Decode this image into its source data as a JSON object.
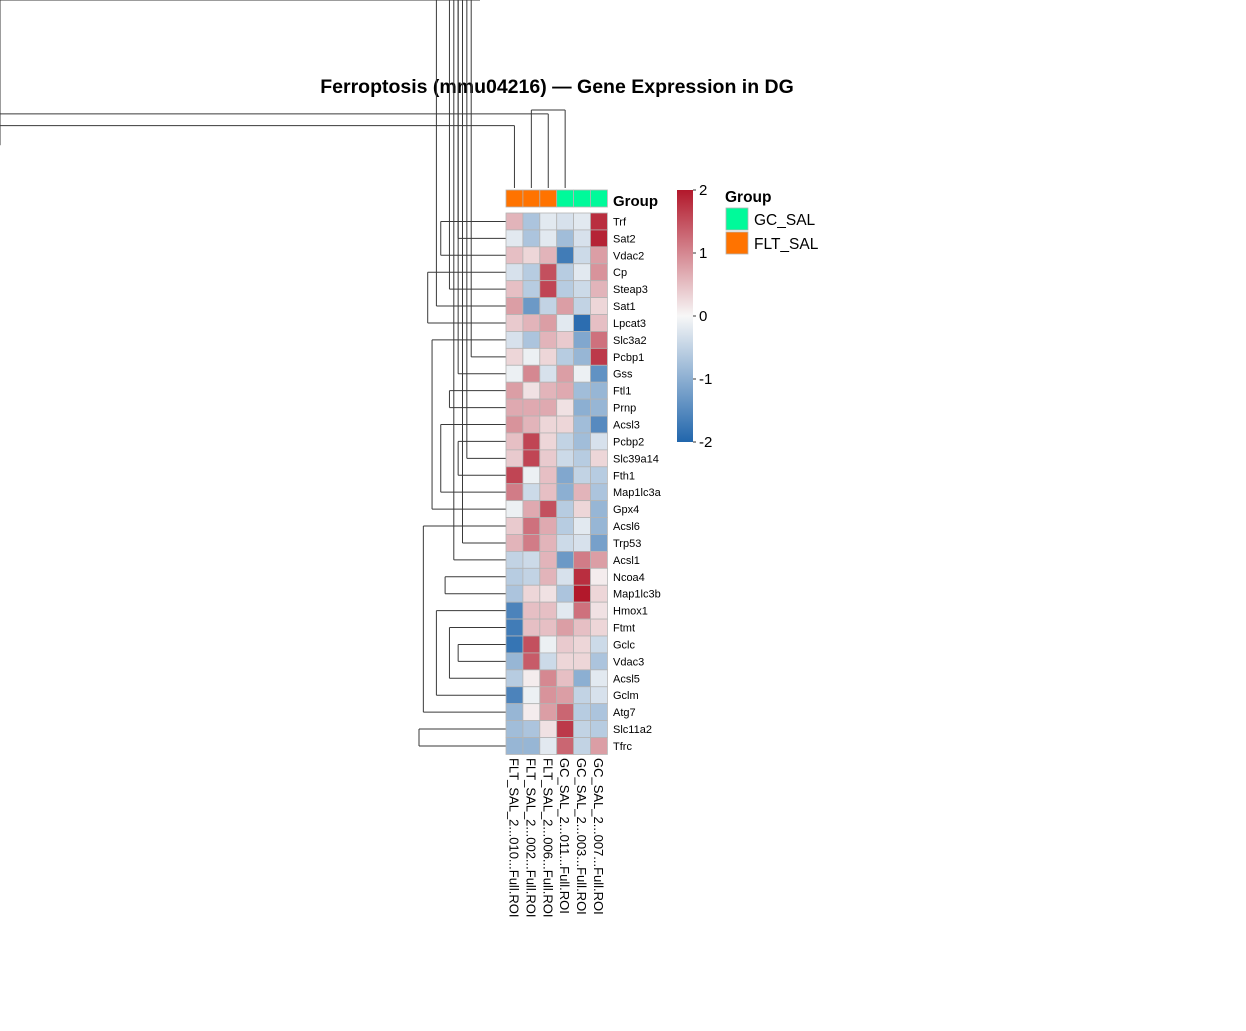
{
  "chart_data": {
    "type": "heatmap",
    "title": "Ferroptosis (mmu04216) — Gene Expression in DG",
    "columns": [
      "FLT_SAL_2...010...Full.ROI",
      "FLT_SAL_2...002...Full.ROI",
      "FLT_SAL_2...006...Full.ROI",
      "GC_SAL_2...011...Full.ROI",
      "GC_SAL_2...003...Full.ROI",
      "GC_SAL_2...007...Full.ROI"
    ],
    "column_groups": [
      "FLT_SAL",
      "FLT_SAL",
      "FLT_SAL",
      "GC_SAL",
      "GC_SAL",
      "GC_SAL"
    ],
    "annotation_label": "Group",
    "rows": [
      "Trf",
      "Sat2",
      "Vdac2",
      "Cp",
      "Steap3",
      "Sat1",
      "Lpcat3",
      "Slc3a2",
      "Pcbp1",
      "Gss",
      "Ftl1",
      "Prnp",
      "Acsl3",
      "Pcbp2",
      "Slc39a14",
      "Fth1",
      "Map1lc3a",
      "Gpx4",
      "Acsl6",
      "Trp53",
      "Acsl1",
      "Ncoa4",
      "Map1lc3b",
      "Hmox1",
      "Ftmt",
      "Gclc",
      "Vdac3",
      "Acsl5",
      "Gclm",
      "Atg7",
      "Slc11a2",
      "Tfrc"
    ],
    "values": [
      [
        0.6,
        -0.7,
        -0.2,
        -0.3,
        -0.2,
        1.8
      ],
      [
        -0.2,
        -0.7,
        -0.2,
        -0.8,
        -0.3,
        1.9
      ],
      [
        0.5,
        0.3,
        0.6,
        -1.7,
        -0.4,
        0.8
      ],
      [
        -0.3,
        -0.6,
        1.5,
        -0.6,
        -0.2,
        0.9
      ],
      [
        0.5,
        -0.6,
        1.6,
        -0.6,
        -0.4,
        0.6
      ],
      [
        0.8,
        -1.3,
        -0.5,
        0.8,
        -0.5,
        0.3
      ],
      [
        0.4,
        0.6,
        0.8,
        -0.2,
        -1.9,
        0.5
      ],
      [
        -0.3,
        -0.7,
        0.6,
        0.4,
        -1.1,
        1.2
      ],
      [
        0.3,
        -0.1,
        0.3,
        -0.6,
        -0.9,
        1.7
      ],
      [
        -0.1,
        1.0,
        -0.3,
        0.8,
        -0.1,
        -1.4
      ],
      [
        0.8,
        0.2,
        0.6,
        0.7,
        -0.8,
        -0.9
      ],
      [
        0.7,
        0.7,
        0.7,
        0.2,
        -1.0,
        -0.9
      ],
      [
        0.9,
        0.6,
        0.3,
        0.3,
        -0.8,
        -1.5
      ],
      [
        0.5,
        1.6,
        0.3,
        -0.5,
        -0.8,
        -0.3
      ],
      [
        0.4,
        1.6,
        0.4,
        -0.4,
        -0.6,
        0.3
      ],
      [
        1.6,
        -0.1,
        0.5,
        -1.1,
        -0.5,
        -0.6
      ],
      [
        1.1,
        -0.4,
        0.5,
        -1.0,
        0.6,
        -0.7
      ],
      [
        -0.1,
        0.7,
        1.5,
        -0.6,
        0.3,
        -0.9
      ],
      [
        0.4,
        1.2,
        0.7,
        -0.6,
        -0.2,
        -0.9
      ],
      [
        0.6,
        1.1,
        0.6,
        -0.4,
        -0.3,
        -1.2
      ],
      [
        -0.5,
        -0.4,
        0.6,
        -1.3,
        1.1,
        0.8
      ],
      [
        -0.6,
        -0.5,
        0.6,
        -0.3,
        1.8,
        0.1
      ],
      [
        -0.7,
        0.3,
        0.2,
        -0.7,
        2.0,
        0.3
      ],
      [
        -1.6,
        0.5,
        0.5,
        -0.2,
        1.2,
        0.2
      ],
      [
        -1.7,
        0.5,
        0.5,
        0.8,
        0.5,
        0.3
      ],
      [
        -1.8,
        1.5,
        -0.1,
        0.4,
        0.3,
        -0.4
      ],
      [
        -0.9,
        1.4,
        -0.4,
        0.3,
        0.3,
        -0.7
      ],
      [
        -0.6,
        0.1,
        1.0,
        0.5,
        -1.0,
        -0.2
      ],
      [
        -1.6,
        -0.1,
        0.9,
        0.8,
        -0.5,
        -0.3
      ],
      [
        -0.9,
        0.1,
        0.8,
        1.3,
        -0.6,
        -0.7
      ],
      [
        -0.8,
        -0.7,
        0.2,
        1.7,
        -0.5,
        -0.6
      ],
      [
        -0.9,
        -0.9,
        -0.2,
        1.3,
        -0.5,
        0.8
      ]
    ],
    "color_scale": {
      "min": -2,
      "max": 2,
      "low": "#2166AC",
      "mid": "#F7F7F7",
      "high": "#B2182B"
    },
    "colorbar_ticks": [
      "2",
      "1",
      "0",
      "-1",
      "-2"
    ],
    "legend": {
      "title": "Group",
      "items": [
        {
          "label": "GC_SAL",
          "color": "#00FA9A"
        },
        {
          "label": "FLT_SAL",
          "color": "#FF7300"
        }
      ]
    },
    "row_dendrogram": {
      "m": [
        [
          0,
          1,
          0.4
        ],
        [
          3,
          4,
          0.3
        ],
        [
          -2,
          2,
          0.55
        ],
        [
          -1,
          -3,
          0.75
        ],
        [
          7,
          8,
          0.5
        ],
        [
          6,
          -5,
          0.65
        ],
        [
          5,
          -6,
          0.8
        ],
        [
          -4,
          -7,
          0.9
        ],
        [
          10,
          11,
          0.3
        ],
        [
          12,
          -9,
          0.4
        ],
        [
          -10,
          9,
          0.55
        ],
        [
          13,
          14,
          0.4
        ],
        [
          -12,
          -11,
          0.65
        ],
        [
          16,
          17,
          0.3
        ],
        [
          18,
          19,
          0.3
        ],
        [
          15,
          -15,
          0.45
        ],
        [
          -16,
          -14,
          0.55
        ],
        [
          -13,
          -17,
          0.75
        ],
        [
          -8,
          -18,
          0.85
        ],
        [
          21,
          22,
          0.3
        ],
        [
          20,
          -20,
          0.5
        ],
        [
          -21,
          23,
          0.6
        ],
        [
          24,
          25,
          0.3
        ],
        [
          26,
          27,
          0.6
        ],
        [
          -23,
          -22,
          0.7
        ],
        [
          28,
          29,
          0.4
        ],
        [
          30,
          31,
          0.4
        ],
        [
          -26,
          -27,
          0.55
        ],
        [
          -25,
          -28,
          0.65
        ],
        [
          -24,
          -29,
          0.8
        ],
        [
          -30,
          -19,
          0.95
        ],
        [
          -31,
          -32,
          1.0
        ]
      ]
    },
    "col_dendrogram": {
      "m": [
        [
          1,
          2,
          0.55
        ],
        [
          0,
          -1,
          0.8
        ],
        [
          4,
          5,
          0.85
        ],
        [
          3,
          -3,
          0.95
        ],
        [
          -2,
          -4,
          1.0
        ]
      ]
    }
  }
}
